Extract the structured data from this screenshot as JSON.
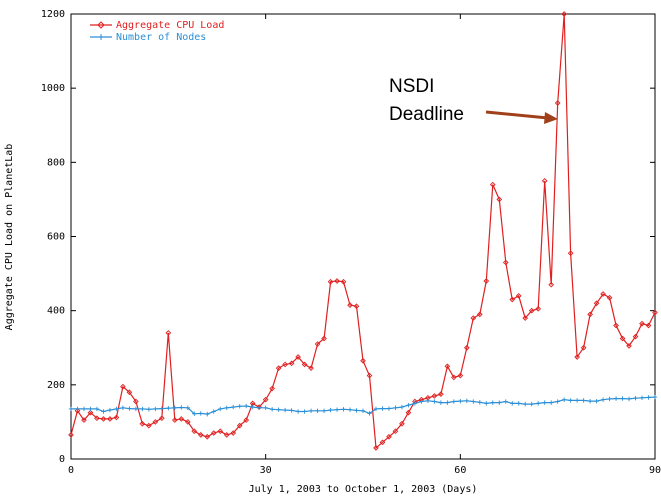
{
  "chart_data": {
    "type": "line",
    "xlabel": "July 1, 2003 to October 1, 2003 (Days)",
    "ylabel": "Aggregate CPU Load on PlanetLab",
    "xlim": [
      0,
      90
    ],
    "ylim": [
      0,
      1200
    ],
    "xticks": [
      0,
      30,
      60,
      90
    ],
    "yticks": [
      0,
      200,
      400,
      600,
      800,
      1000,
      1200
    ],
    "xtick_labels": [
      "0",
      "30",
      "60",
      "90"
    ],
    "ytick_labels": [
      "0",
      "200",
      "400",
      "600",
      "800",
      "1000",
      "1200"
    ],
    "grid": false,
    "legend_position": "top-left",
    "series": [
      {
        "name": "Aggregate CPU Load",
        "color": "#e02020",
        "marker": "diamond",
        "x": [
          0,
          1,
          2,
          3,
          4,
          5,
          6,
          7,
          8,
          9,
          10,
          11,
          12,
          13,
          14,
          15,
          16,
          17,
          18,
          19,
          20,
          21,
          22,
          23,
          24,
          25,
          26,
          27,
          28,
          29,
          30,
          31,
          32,
          33,
          34,
          35,
          36,
          37,
          38,
          39,
          40,
          41,
          42,
          43,
          44,
          45,
          46,
          47,
          48,
          49,
          50,
          51,
          52,
          53,
          54,
          55,
          56,
          57,
          58,
          59,
          60,
          61,
          62,
          63,
          64,
          65,
          66,
          67,
          68,
          69,
          70,
          71,
          72,
          73,
          74,
          75,
          76,
          77,
          78,
          79,
          80,
          81,
          82,
          83,
          84,
          85,
          86,
          87,
          88,
          89,
          90
        ],
        "y": [
          65,
          130,
          105,
          125,
          110,
          108,
          108,
          112,
          195,
          180,
          155,
          95,
          90,
          100,
          110,
          340,
          105,
          108,
          100,
          75,
          65,
          60,
          70,
          75,
          65,
          70,
          90,
          105,
          150,
          140,
          160,
          190,
          245,
          255,
          258,
          275,
          255,
          245,
          310,
          325,
          478,
          480,
          478,
          415,
          412,
          265,
          225,
          30,
          45,
          60,
          75,
          95,
          125,
          155,
          160,
          165,
          170,
          175,
          250,
          220,
          225,
          300,
          380,
          390,
          480,
          740,
          700,
          530,
          430,
          440,
          380,
          400,
          405,
          750,
          470,
          960,
          1200,
          555,
          275,
          300,
          390,
          420,
          445,
          435,
          360,
          325,
          305,
          330,
          365,
          360,
          395
        ]
      },
      {
        "name": "Number of Nodes",
        "color": "#2a8fd6",
        "marker": "plus",
        "x": [
          0,
          1,
          2,
          3,
          4,
          5,
          6,
          7,
          8,
          9,
          10,
          11,
          12,
          13,
          14,
          15,
          16,
          17,
          18,
          19,
          20,
          21,
          22,
          23,
          24,
          25,
          26,
          27,
          28,
          29,
          30,
          31,
          32,
          33,
          34,
          35,
          36,
          37,
          38,
          39,
          40,
          41,
          42,
          43,
          44,
          45,
          46,
          47,
          48,
          49,
          50,
          51,
          52,
          53,
          54,
          55,
          56,
          57,
          58,
          59,
          60,
          61,
          62,
          63,
          64,
          65,
          66,
          67,
          68,
          69,
          70,
          71,
          72,
          73,
          74,
          75,
          76,
          77,
          78,
          79,
          80,
          81,
          82,
          83,
          84,
          85,
          86,
          87,
          88,
          89,
          90
        ],
        "y": [
          135,
          135,
          135,
          135,
          135,
          128,
          132,
          135,
          138,
          136,
          135,
          135,
          134,
          135,
          136,
          137,
          138,
          139,
          138,
          122,
          123,
          121,
          128,
          135,
          138,
          140,
          142,
          143,
          140,
          138,
          138,
          134,
          133,
          132,
          131,
          128,
          128,
          130,
          130,
          130,
          132,
          133,
          134,
          133,
          131,
          130,
          123,
          135,
          136,
          136,
          138,
          140,
          145,
          150,
          155,
          157,
          155,
          152,
          152,
          155,
          156,
          157,
          155,
          153,
          150,
          152,
          152,
          155,
          150,
          150,
          148,
          148,
          150,
          152,
          152,
          155,
          160,
          158,
          158,
          158,
          156,
          156,
          160,
          162,
          163,
          163,
          162,
          164,
          165,
          166,
          167
        ]
      }
    ],
    "annotations": [
      {
        "text_lines": [
          "NSDI",
          "Deadline"
        ],
        "x": 75,
        "y": 920,
        "arrow_color": "#a0401a"
      }
    ]
  }
}
